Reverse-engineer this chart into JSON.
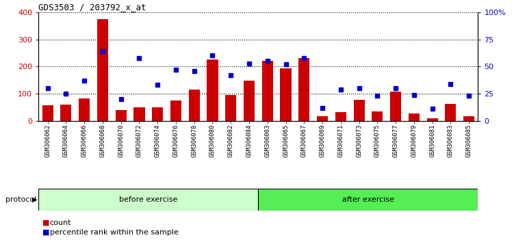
{
  "title": "GDS3503 / 203792_x_at",
  "samples": [
    "GSM306062",
    "GSM306064",
    "GSM306066",
    "GSM306068",
    "GSM306070",
    "GSM306072",
    "GSM306074",
    "GSM306076",
    "GSM306078",
    "GSM306080",
    "GSM306082",
    "GSM306084",
    "GSM306063",
    "GSM306065",
    "GSM306067",
    "GSM306069",
    "GSM306071",
    "GSM306073",
    "GSM306075",
    "GSM306077",
    "GSM306079",
    "GSM306081",
    "GSM306083",
    "GSM306085"
  ],
  "counts": [
    57,
    60,
    83,
    375,
    40,
    50,
    50,
    75,
    115,
    225,
    95,
    148,
    220,
    193,
    230,
    18,
    32,
    77,
    35,
    107,
    27,
    10,
    62,
    17
  ],
  "percentiles": [
    30,
    25,
    37,
    64,
    20,
    58,
    33,
    47,
    46,
    60,
    42,
    53,
    55,
    52,
    58,
    12,
    29,
    30,
    23,
    30,
    24,
    11,
    34,
    23
  ],
  "before_count": 12,
  "after_count": 12,
  "bar_color": "#cc0000",
  "dot_color": "#0000cc",
  "before_color": "#ccffcc",
  "after_color": "#55ee55",
  "protocol_label": "protocol",
  "before_label": "before exercise",
  "after_label": "after exercise",
  "legend_count": "count",
  "legend_percentile": "percentile rank within the sample",
  "ylim_left": [
    0,
    400
  ],
  "ylim_right": [
    0,
    100
  ],
  "yticks_left": [
    0,
    100,
    200,
    300,
    400
  ],
  "yticks_right": [
    0,
    25,
    50,
    75,
    100
  ],
  "ytick_labels_right": [
    "0",
    "25",
    "50",
    "75",
    "100%"
  ],
  "bg_color": "#ffffff",
  "plot_bg_color": "#ffffff",
  "label_bg_color": "#cccccc",
  "grid_color": "#000000"
}
